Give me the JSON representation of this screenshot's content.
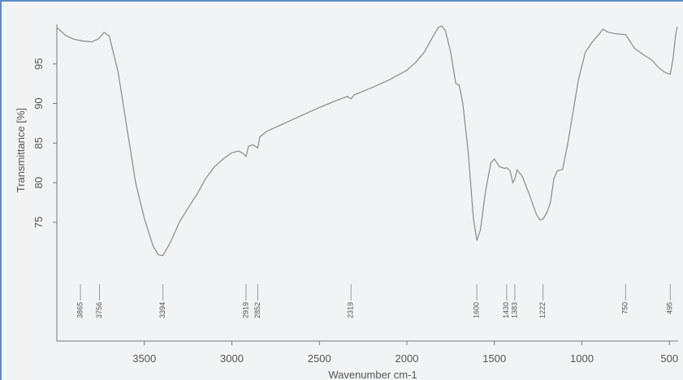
{
  "chart_data": {
    "type": "line",
    "title": "",
    "xlabel": "Wavenumber cm-1",
    "ylabel": "Transmittance [%]",
    "xlim": [
      4000,
      450
    ],
    "x_reversed": true,
    "ylim": [
      60,
      100
    ],
    "grid": false,
    "xticks": [
      3500,
      3000,
      2500,
      2000,
      1500,
      1000,
      500
    ],
    "yticks": [
      75,
      80,
      85,
      90,
      95
    ],
    "peak_labels": [
      3865,
      3756,
      3394,
      2919,
      2852,
      2319,
      1600,
      1430,
      1383,
      1222,
      750,
      495
    ],
    "series": [
      {
        "color": "#8a8a8a",
        "points": [
          [
            4000,
            99.6
          ],
          [
            3950,
            98.6
          ],
          [
            3900,
            98.1
          ],
          [
            3850,
            97.9
          ],
          [
            3800,
            97.8
          ],
          [
            3760,
            98.2
          ],
          [
            3730,
            99.0
          ],
          [
            3700,
            98.5
          ],
          [
            3650,
            94.0
          ],
          [
            3600,
            87.0
          ],
          [
            3550,
            80.0
          ],
          [
            3500,
            75.5
          ],
          [
            3450,
            72.0
          ],
          [
            3420,
            70.9
          ],
          [
            3394,
            70.8
          ],
          [
            3350,
            72.5
          ],
          [
            3300,
            75.0
          ],
          [
            3250,
            76.8
          ],
          [
            3200,
            78.5
          ],
          [
            3150,
            80.5
          ],
          [
            3100,
            82.0
          ],
          [
            3050,
            83.0
          ],
          [
            3000,
            83.8
          ],
          [
            2960,
            84.0
          ],
          [
            2930,
            83.6
          ],
          [
            2919,
            83.3
          ],
          [
            2905,
            84.6
          ],
          [
            2880,
            84.8
          ],
          [
            2852,
            84.4
          ],
          [
            2840,
            85.8
          ],
          [
            2800,
            86.5
          ],
          [
            2700,
            87.5
          ],
          [
            2600,
            88.5
          ],
          [
            2500,
            89.5
          ],
          [
            2400,
            90.4
          ],
          [
            2340,
            90.9
          ],
          [
            2319,
            90.6
          ],
          [
            2300,
            91.1
          ],
          [
            2200,
            92.0
          ],
          [
            2100,
            93.0
          ],
          [
            2000,
            94.2
          ],
          [
            1950,
            95.2
          ],
          [
            1900,
            96.5
          ],
          [
            1850,
            98.5
          ],
          [
            1820,
            99.6
          ],
          [
            1800,
            99.8
          ],
          [
            1780,
            99.2
          ],
          [
            1750,
            96.5
          ],
          [
            1720,
            92.5
          ],
          [
            1700,
            92.3
          ],
          [
            1680,
            90.0
          ],
          [
            1650,
            84.0
          ],
          [
            1620,
            75.5
          ],
          [
            1600,
            72.7
          ],
          [
            1580,
            74.0
          ],
          [
            1550,
            79.0
          ],
          [
            1520,
            82.5
          ],
          [
            1500,
            83.0
          ],
          [
            1470,
            82.0
          ],
          [
            1440,
            81.8
          ],
          [
            1430,
            81.9
          ],
          [
            1410,
            81.5
          ],
          [
            1395,
            80.0
          ],
          [
            1383,
            80.5
          ],
          [
            1370,
            81.6
          ],
          [
            1340,
            80.8
          ],
          [
            1300,
            78.5
          ],
          [
            1260,
            76.0
          ],
          [
            1240,
            75.3
          ],
          [
            1222,
            75.4
          ],
          [
            1200,
            76.2
          ],
          [
            1180,
            77.5
          ],
          [
            1160,
            80.5
          ],
          [
            1140,
            81.5
          ],
          [
            1110,
            81.7
          ],
          [
            1080,
            85.0
          ],
          [
            1050,
            89.0
          ],
          [
            1020,
            93.0
          ],
          [
            980,
            96.5
          ],
          [
            940,
            97.8
          ],
          [
            900,
            98.8
          ],
          [
            880,
            99.4
          ],
          [
            850,
            99.0
          ],
          [
            800,
            98.8
          ],
          [
            750,
            98.7
          ],
          [
            700,
            97.0
          ],
          [
            650,
            96.2
          ],
          [
            600,
            95.5
          ],
          [
            560,
            94.5
          ],
          [
            530,
            94.0
          ],
          [
            510,
            93.8
          ],
          [
            495,
            93.7
          ],
          [
            480,
            95.5
          ],
          [
            465,
            98.5
          ],
          [
            455,
            99.7
          ]
        ]
      }
    ]
  }
}
